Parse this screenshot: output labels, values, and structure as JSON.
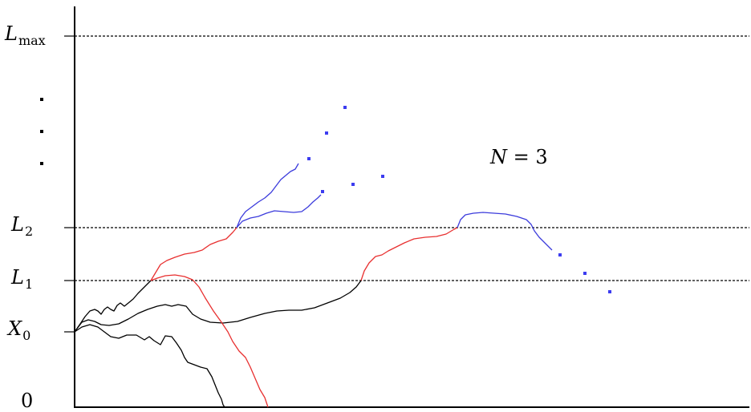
{
  "levels": {
    "lmax": {
      "symbol": "L",
      "sub": "max"
    },
    "l2": {
      "symbol": "L",
      "sub": "2"
    },
    "l1": {
      "symbol": "L",
      "sub": "1"
    },
    "x0": {
      "symbol": "X",
      "sub": "0"
    },
    "zero": "0"
  },
  "annotation": {
    "var": "N",
    "rest": " = 3"
  },
  "colors": {
    "axis": "#000000",
    "level_line": "#000000",
    "path_stage0": "#000000",
    "path_stage1": "#e83030",
    "path_stage2": "#3c3cdc",
    "continuation_dots": "#3c3cf0"
  }
}
